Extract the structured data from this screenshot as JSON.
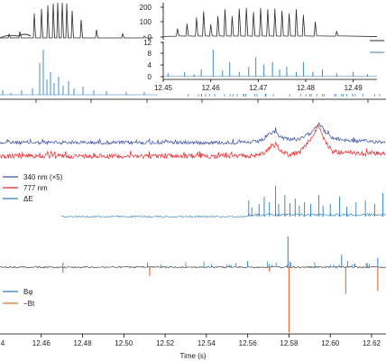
{
  "colors": {
    "black": "#2a2a2a",
    "blue_dark": "#3a4fa8",
    "blue_light": "#2f7fc1",
    "red": "#e8262b",
    "orange": "#ea6a3a"
  },
  "chart_data": [
    {
      "type": "line",
      "panel": "inset-intensity",
      "xlim": [
        12.45,
        12.495
      ],
      "ylim": [
        0,
        250
      ],
      "y_ticks": [
        "200",
        "100",
        "0"
      ],
      "series": [
        {
          "peaks_x": [
            12.453,
            12.455,
            12.457,
            12.4585,
            12.46,
            12.4615,
            12.463,
            12.4645,
            12.466,
            12.4675,
            12.469,
            12.4705,
            12.472,
            12.4735,
            12.475,
            12.4765,
            12.478,
            12.4795,
            12.482,
            12.4865
          ],
          "peaks_y": [
            60,
            95,
            140,
            185,
            90,
            150,
            200,
            150,
            205,
            210,
            180,
            210,
            200,
            205,
            190,
            170,
            200,
            160,
            110,
            40
          ]
        }
      ]
    },
    {
      "type": "line",
      "panel": "inset-delta",
      "xlim": [
        12.45,
        12.495
      ],
      "ylim": [
        0,
        14
      ],
      "x_ticks": [
        "12.45",
        "12.46",
        "12.47",
        "12.48",
        "12.49"
      ],
      "y_ticks": [
        "12",
        "8",
        "4",
        "0"
      ],
      "series": [
        {
          "spikes_x": [
            12.451,
            12.4545,
            12.4565,
            12.458,
            12.4605,
            12.4625,
            12.464,
            12.466,
            12.468,
            12.4695,
            12.4712,
            12.473,
            12.4745,
            12.476,
            12.478,
            12.4795,
            12.4815,
            12.4835,
            12.4865,
            12.49,
            12.493
          ],
          "spikes_y": [
            1.5,
            2,
            1,
            3,
            11,
            2.5,
            6,
            2,
            4,
            8,
            5,
            6,
            3,
            4,
            2,
            6,
            2,
            3,
            1.5,
            2,
            1
          ]
        }
      ]
    },
    {
      "type": "line",
      "panel": "main-optical",
      "xlim": [
        12.44,
        12.627
      ],
      "x_ticks": [
        "12.46",
        "12.48",
        "12.50",
        "12.52",
        "12.54",
        "12.56",
        "12.58",
        "12.60",
        "12.62"
      ],
      "x_tick_first": "4",
      "xlabel": "Time (s)",
      "legend": [
        "340 nm (×5)",
        "777 nm",
        "ΔE"
      ],
      "series": [
        {
          "name": "340 nm (×5)",
          "x": [
            12.44,
            12.5,
            12.56,
            12.565,
            12.568,
            12.571,
            12.5735,
            12.576,
            12.58,
            12.585,
            12.59,
            12.5945,
            12.5975,
            12.601,
            12.61,
            12.627
          ],
          "y": [
            1.0,
            1.0,
            1.0,
            1.03,
            1.1,
            1.25,
            1.3,
            1.15,
            1.1,
            1.08,
            1.25,
            1.55,
            1.3,
            1.12,
            1.05,
            1.02
          ]
        },
        {
          "name": "777 nm",
          "x": [
            12.44,
            12.5,
            12.56,
            12.564,
            12.568,
            12.571,
            12.5735,
            12.576,
            12.58,
            12.585,
            12.59,
            12.5945,
            12.5975,
            12.601,
            12.61,
            12.627
          ],
          "y": [
            0,
            0,
            0,
            0.03,
            0.1,
            0.3,
            0.35,
            0.15,
            0.05,
            0.1,
            0.5,
            0.95,
            0.45,
            0.15,
            0.08,
            0.08
          ]
        }
      ]
    },
    {
      "type": "line",
      "panel": "main-field",
      "xlim": [
        12.44,
        12.627
      ],
      "legend": [
        "Bφ",
        "−Bt"
      ],
      "series": [
        {
          "name": "Bφ",
          "spikes_x": [
            12.4705,
            12.5115,
            12.56,
            12.5705,
            12.5795,
            12.6055,
            12.623
          ],
          "spikes_y": [
            0.15,
            0.15,
            0.2,
            0.1,
            1.0,
            0.4,
            0.3
          ]
        },
        {
          "name": "−Bt",
          "spikes_x": [
            12.4705,
            12.5125,
            12.5705,
            12.58,
            12.6075,
            12.623
          ],
          "spikes_y": [
            -0.2,
            -0.3,
            -0.15,
            -2.2,
            -0.9,
            -0.8
          ]
        }
      ]
    }
  ]
}
